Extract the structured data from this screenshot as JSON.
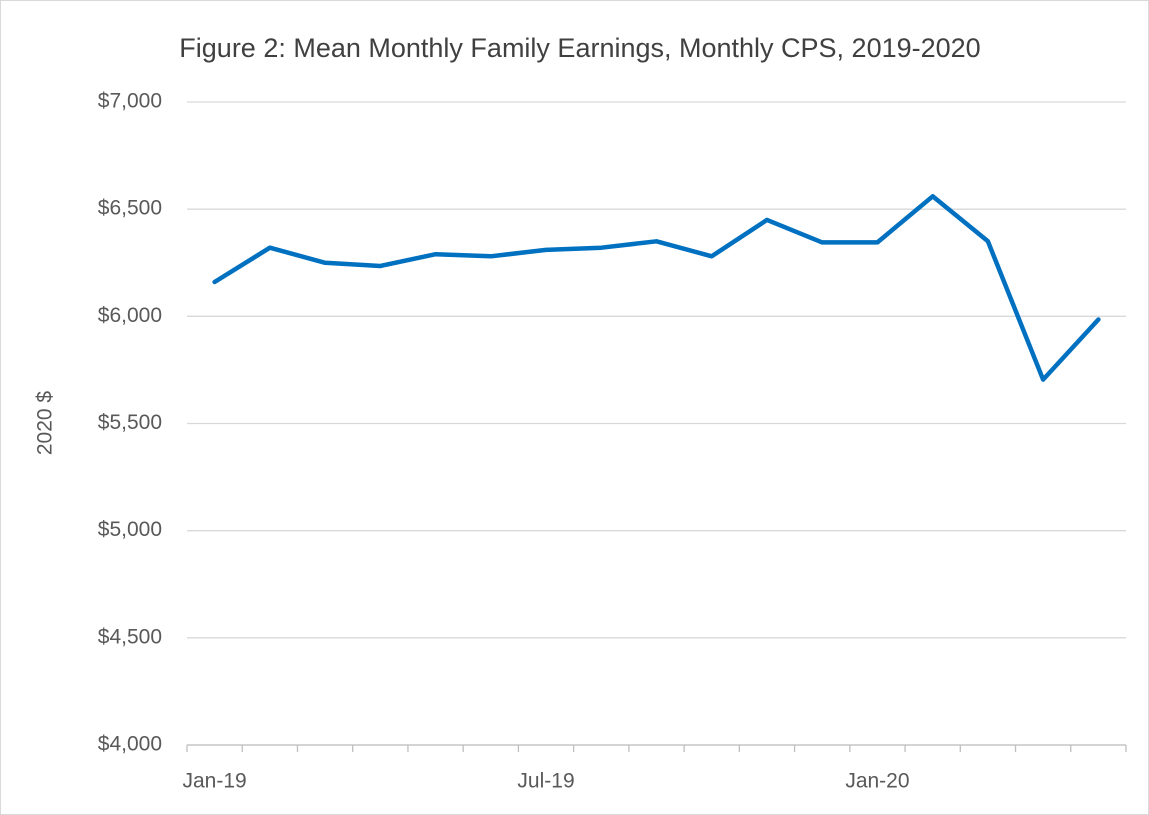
{
  "chart_data": {
    "type": "line",
    "title": "Figure 2: Mean Monthly Family Earnings, Monthly CPS, 2019-2020",
    "y_label": "2020 $",
    "categories": [
      "Jan-19",
      null,
      null,
      null,
      null,
      null,
      "Jul-19",
      null,
      null,
      null,
      null,
      null,
      "Jan-20",
      null,
      null,
      null,
      null
    ],
    "series": [
      {
        "name": "Mean Monthly Family Earnings",
        "color": "#0070c0",
        "values": [
          6160,
          6320,
          6250,
          6235,
          6290,
          6280,
          6310,
          6320,
          6350,
          6280,
          6450,
          6345,
          6345,
          6560,
          6350,
          5705,
          5985
        ]
      }
    ],
    "ylim": [
      4000,
      7000
    ],
    "yticks": [
      {
        "value": 4000,
        "label": "$4,000"
      },
      {
        "value": 4500,
        "label": "$4,500"
      },
      {
        "value": 5000,
        "label": "$5,000"
      },
      {
        "value": 5500,
        "label": "$5,500"
      },
      {
        "value": 6000,
        "label": "$6,000"
      },
      {
        "value": 6500,
        "label": "$6,500"
      },
      {
        "value": 7000,
        "label": "$7,000"
      }
    ],
    "grid": true
  }
}
